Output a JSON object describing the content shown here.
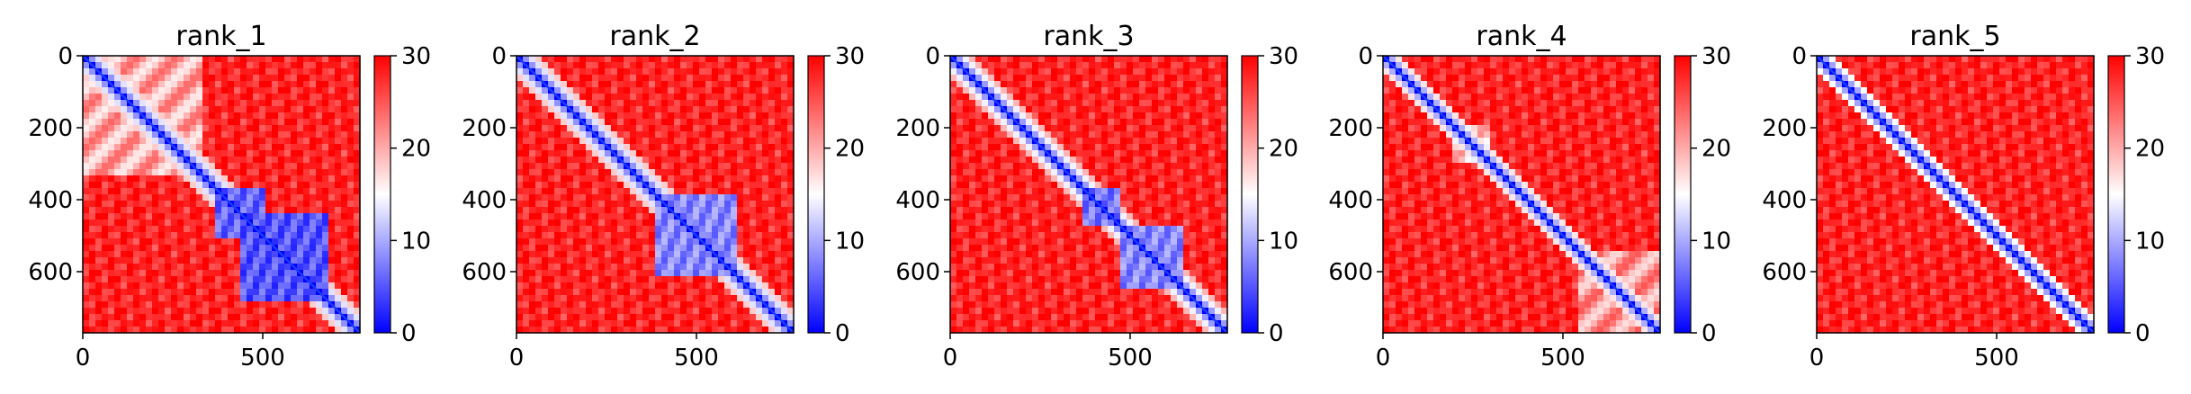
{
  "chart_data": [
    {
      "type": "heatmap",
      "title": "rank_1",
      "x_ticks": [
        0,
        500
      ],
      "y_ticks": [
        0,
        200,
        400,
        600
      ],
      "x_range": [
        0,
        770
      ],
      "y_range": [
        0,
        770
      ],
      "colorbar": {
        "range": [
          0,
          30
        ],
        "ticks": [
          0,
          10,
          20,
          30
        ],
        "colormap": "bwr"
      },
      "low_blocks": [
        {
          "from": 360,
          "to": 500,
          "level": 6
        },
        {
          "from": 440,
          "to": 690,
          "level": 5
        }
      ],
      "mid_blocks": [
        {
          "from": 0,
          "to": 330,
          "level": 20
        }
      ],
      "diagonal_band": 60
    },
    {
      "type": "heatmap",
      "title": "rank_2",
      "x_ticks": [
        0,
        500
      ],
      "y_ticks": [
        0,
        200,
        400,
        600
      ],
      "x_range": [
        0,
        770
      ],
      "y_range": [
        0,
        770
      ],
      "colorbar": {
        "range": [
          0,
          30
        ],
        "ticks": [
          0,
          10,
          20,
          30
        ],
        "colormap": "bwr"
      },
      "low_blocks": [
        {
          "from": 380,
          "to": 620,
          "level": 8
        }
      ],
      "mid_blocks": [],
      "diagonal_band": 60
    },
    {
      "type": "heatmap",
      "title": "rank_3",
      "x_ticks": [
        0,
        500
      ],
      "y_ticks": [
        0,
        200,
        400,
        600
      ],
      "x_range": [
        0,
        770
      ],
      "y_range": [
        0,
        770
      ],
      "colorbar": {
        "range": [
          0,
          30
        ],
        "ticks": [
          0,
          10,
          20,
          30
        ],
        "colormap": "bwr"
      },
      "low_blocks": [
        {
          "from": 370,
          "to": 480,
          "level": 7
        },
        {
          "from": 470,
          "to": 650,
          "level": 8
        }
      ],
      "mid_blocks": [],
      "diagonal_band": 55
    },
    {
      "type": "heatmap",
      "title": "rank_4",
      "x_ticks": [
        0,
        500
      ],
      "y_ticks": [
        0,
        200,
        400,
        600
      ],
      "x_range": [
        0,
        770
      ],
      "y_range": [
        0,
        770
      ],
      "colorbar": {
        "range": [
          0,
          30
        ],
        "ticks": [
          0,
          10,
          20,
          30
        ],
        "colormap": "bwr"
      },
      "low_blocks": [],
      "mid_blocks": [
        {
          "from": 190,
          "to": 290,
          "level": 18
        },
        {
          "from": 540,
          "to": 770,
          "level": 21
        }
      ],
      "diagonal_band": 45
    },
    {
      "type": "heatmap",
      "title": "rank_5",
      "x_ticks": [
        0,
        500
      ],
      "y_ticks": [
        0,
        200,
        400,
        600
      ],
      "x_range": [
        0,
        770
      ],
      "y_range": [
        0,
        770
      ],
      "colorbar": {
        "range": [
          0,
          30
        ],
        "ticks": [
          0,
          10,
          20,
          30
        ],
        "colormap": "bwr"
      },
      "low_blocks": [],
      "mid_blocks": [],
      "diagonal_band": 50
    }
  ]
}
